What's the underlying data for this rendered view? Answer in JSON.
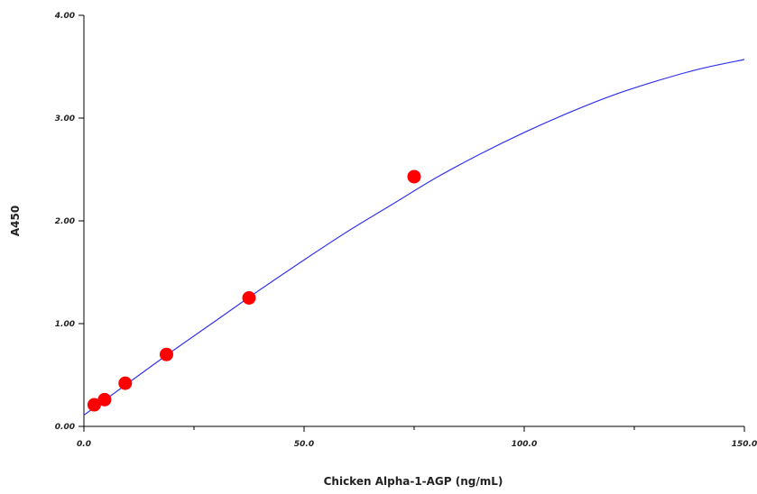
{
  "chart_data": {
    "type": "scatter",
    "title": "",
    "xlabel": "Chicken Alpha-1-AGP (ng/mL)",
    "ylabel": "A450",
    "xlim": [
      0,
      150
    ],
    "ylim": [
      0,
      4
    ],
    "x_ticks": [
      {
        "value": 0,
        "label": "0.0"
      },
      {
        "value": 50,
        "label": "50.0"
      },
      {
        "value": 100,
        "label": "100.0"
      },
      {
        "value": 150,
        "label": "150.0"
      }
    ],
    "x_minor_ticks": [
      25,
      75,
      125
    ],
    "y_ticks": [
      {
        "value": 0,
        "label": "0.00"
      },
      {
        "value": 1,
        "label": "1.00"
      },
      {
        "value": 2,
        "label": "2.00"
      },
      {
        "value": 3,
        "label": "3.00"
      },
      {
        "value": 4,
        "label": "4.00"
      }
    ],
    "grid": false,
    "series": [
      {
        "type": "scatter",
        "color": "#ff0000",
        "points": [
          {
            "x": 2.34,
            "y": 0.21
          },
          {
            "x": 4.69,
            "y": 0.26
          },
          {
            "x": 9.38,
            "y": 0.42
          },
          {
            "x": 18.75,
            "y": 0.7
          },
          {
            "x": 37.5,
            "y": 1.25
          },
          {
            "x": 75,
            "y": 2.43
          }
        ]
      },
      {
        "type": "line",
        "color": "#3333ee",
        "points": [
          {
            "x": 0,
            "y": 0.11
          },
          {
            "x": 10,
            "y": 0.42
          },
          {
            "x": 20,
            "y": 0.73
          },
          {
            "x": 30,
            "y": 1.03
          },
          {
            "x": 40,
            "y": 1.33
          },
          {
            "x": 50,
            "y": 1.62
          },
          {
            "x": 60,
            "y": 1.9
          },
          {
            "x": 70,
            "y": 2.16
          },
          {
            "x": 80,
            "y": 2.42
          },
          {
            "x": 90,
            "y": 2.65
          },
          {
            "x": 100,
            "y": 2.86
          },
          {
            "x": 110,
            "y": 3.05
          },
          {
            "x": 120,
            "y": 3.22
          },
          {
            "x": 130,
            "y": 3.36
          },
          {
            "x": 140,
            "y": 3.48
          },
          {
            "x": 150,
            "y": 3.57
          }
        ]
      }
    ]
  }
}
